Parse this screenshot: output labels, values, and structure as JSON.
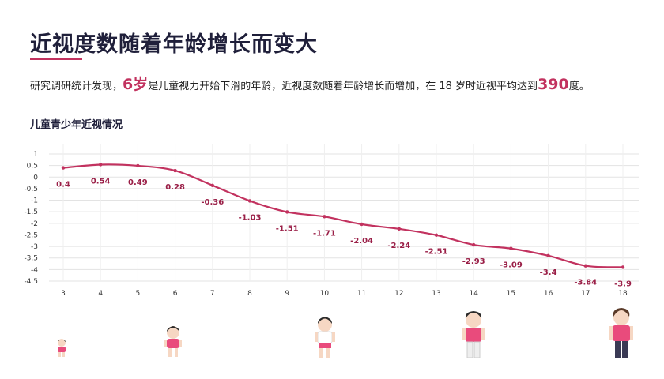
{
  "page": {
    "title": "近视度数随着年龄增长而变大",
    "intro_pre": "研究调研统计发现，",
    "intro_age": "6岁",
    "intro_mid": "是儿童视力开始下滑的年龄，近视度数随着年龄增长而增加，在 18 岁时近视平均达到",
    "intro_value": "390",
    "intro_post": "度。",
    "chart_title": "儿童青少年近视情况"
  },
  "colors": {
    "accent": "#c2325f",
    "title": "#1f1f3a",
    "grid": "#e3e3e3",
    "kid_shirt": "#e94b7c",
    "kid_hair": "#2b2b2b"
  },
  "icons": [
    "child-toddler-icon",
    "child-small-icon",
    "child-icon",
    "teen-icon",
    "teen-tall-icon"
  ],
  "chart_data": {
    "type": "line",
    "title": "儿童青少年近视情况",
    "xlabel": "",
    "ylabel": "",
    "x": [
      3,
      4,
      5,
      6,
      7,
      8,
      9,
      10,
      11,
      12,
      13,
      14,
      15,
      16,
      17,
      18
    ],
    "series": [
      {
        "values": [
          0.4,
          0.54,
          0.49,
          0.28,
          -0.36,
          -1.03,
          -1.51,
          -1.71,
          -2.04,
          -2.24,
          -2.51,
          -2.93,
          -3.09,
          -3.4,
          -3.84,
          -3.9
        ]
      }
    ],
    "data_labels": [
      "0.4",
      "0.54",
      "0.49",
      "0.28",
      "-0.36",
      "-1.03",
      "-1.51",
      "-1.71",
      "-2.04",
      "-2.24",
      "-2.51",
      "-2.93",
      "-3.09",
      "-3.4",
      "-3.84",
      "-3.9"
    ],
    "y_ticks": [
      "1",
      "0.5",
      "0",
      "-0.5",
      "-1",
      "-1.5",
      "-2",
      "-2.5",
      "-3",
      "-3.5",
      "-4",
      "-4.5"
    ],
    "ylim": [
      -4.5,
      1
    ],
    "grid": true,
    "legend": "none"
  }
}
